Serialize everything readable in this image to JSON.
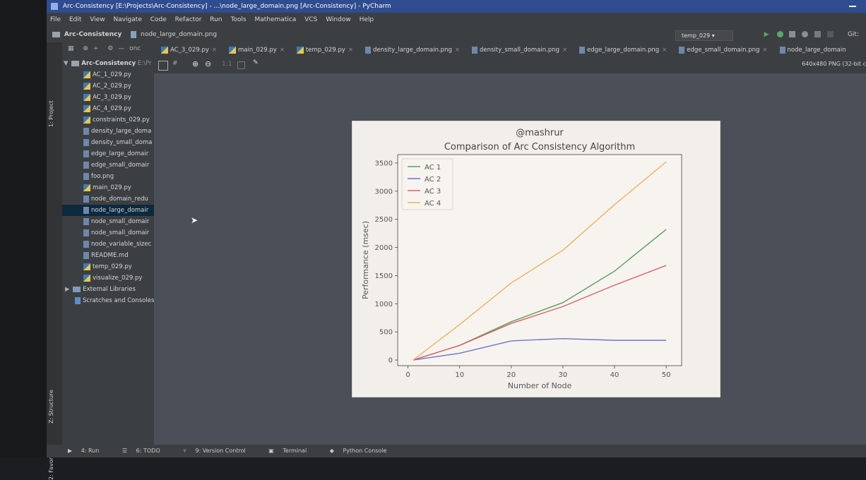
{
  "window": {
    "title": "Arc-Consistency [E:\\Projects\\Arc-Consistency] - ...\\node_large_domain.png [Arc-Consistency] - PyCharm"
  },
  "menu": [
    "File",
    "Edit",
    "View",
    "Navigate",
    "Code",
    "Refactor",
    "Run",
    "Tools",
    "Mathematica",
    "VCS",
    "Window",
    "Help"
  ],
  "breadcrumb": {
    "project": "Arc-Consistency",
    "file": "node_large_domain.png"
  },
  "run_config": {
    "name": "temp_029"
  },
  "git_label": "Git:",
  "project_tree": {
    "root": "Arc-Consistency",
    "root_path": "E:\\Pr",
    "items": [
      "AC_1_029.py",
      "AC_2_029.py",
      "AC_3_029.py",
      "AC_4_029.py",
      "constraints_029.py",
      "density_large_doma",
      "density_small_doma",
      "edge_large_domair",
      "edge_small_domair",
      "foo.png",
      "main_029.py",
      "node_domain_redu",
      "node_large_domair",
      "node_small_domair",
      "node_small_domair",
      "node_variable_sizec",
      "README.md",
      "temp_029.py",
      "visualize_029.py"
    ],
    "external": "External Libraries",
    "scratches": "Scratches and Consoles"
  },
  "toolbar_stub": "onc",
  "tabs": [
    {
      "label": "AC_3_029.py",
      "type": "py"
    },
    {
      "label": "main_029.py",
      "type": "py"
    },
    {
      "label": "temp_029.py",
      "type": "py"
    },
    {
      "label": "density_large_domain.png",
      "type": "png"
    },
    {
      "label": "density_small_domain.png",
      "type": "png"
    },
    {
      "label": "edge_large_domain.png",
      "type": "png"
    },
    {
      "label": "edge_small_domain.png",
      "type": "png"
    },
    {
      "label": "node_large_domain",
      "type": "png",
      "active": true
    }
  ],
  "image_info": "640x480 PNG (32-bit c",
  "side_tabs": {
    "project": "1: Project",
    "structure": "Z: Structure",
    "favorites": "2: Favorites"
  },
  "bottom_tabs": [
    "4: Run",
    "6: TODO",
    "9: Version Control",
    "Terminal",
    "Python Console"
  ],
  "chart_data": {
    "type": "line",
    "title": "@mashrur",
    "subtitle": "Comparison of Arc Consistency Algorithm",
    "xlabel": "Number of Node",
    "ylabel": "Performance (msec)",
    "xlim": [
      -2,
      53
    ],
    "ylim": [
      -100,
      3650
    ],
    "xticks": [
      0,
      10,
      20,
      30,
      40,
      50
    ],
    "yticks": [
      0,
      500,
      1000,
      1500,
      2000,
      2500,
      3000,
      3500
    ],
    "legend": "top-left",
    "x": [
      1,
      10,
      20,
      30,
      40,
      50
    ],
    "series": [
      {
        "name": "AC 1",
        "color": "#5a9e5a",
        "values": [
          0,
          260,
          680,
          1020,
          1580,
          2320
        ]
      },
      {
        "name": "AC 2",
        "color": "#6f74c9",
        "values": [
          0,
          120,
          340,
          380,
          350,
          350
        ]
      },
      {
        "name": "AC 3",
        "color": "#d9606a",
        "values": [
          0,
          260,
          650,
          950,
          1330,
          1680
        ]
      },
      {
        "name": "AC 4",
        "color": "#f0b060",
        "values": [
          0,
          630,
          1370,
          1950,
          2760,
          3520
        ]
      }
    ]
  }
}
